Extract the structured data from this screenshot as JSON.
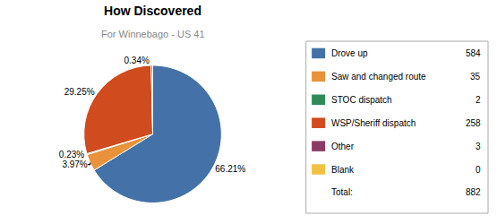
{
  "chart_data": {
    "type": "pie",
    "title": "How Discovered",
    "subtitle": "For Winnebago - US 41",
    "categories": [
      "Drove up",
      "Saw and changed route",
      "STOC dispatch",
      "WSP/Sheriff dispatch",
      "Other",
      "Blank"
    ],
    "values": [
      66.21,
      3.97,
      0.23,
      29.25,
      0.34,
      0
    ],
    "value_labels": [
      "66.21%",
      "3.97%",
      "0.23%",
      "29.25%",
      "0.34%",
      null
    ],
    "data_labels": true,
    "colors": [
      "#4472A8",
      "#E8923A",
      "#2E8B57",
      "#D04B1E",
      "#8B3A62",
      "#F0C040"
    ],
    "counts": [
      584,
      35,
      2,
      258,
      3,
      0
    ],
    "total_label": "Total:",
    "total": 882
  }
}
